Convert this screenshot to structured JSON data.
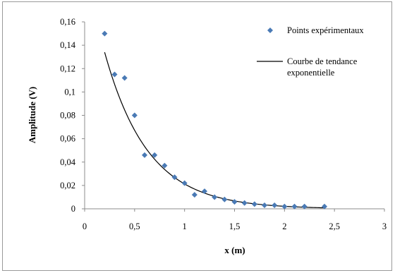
{
  "chart_data": {
    "type": "scatter",
    "xlabel": "x (m)",
    "ylabel": "Amplitude (V)",
    "xlim": [
      0,
      3
    ],
    "ylim": [
      0,
      0.16
    ],
    "x_ticks": [
      "0",
      "0,5",
      "1",
      "1,5",
      "2",
      "2,5",
      "3"
    ],
    "y_ticks": [
      "0",
      "0,02",
      "0,04",
      "0,06",
      "0,08",
      "0,1",
      "0,12",
      "0,14",
      "0,16"
    ],
    "grid": false,
    "legend_position": "top-right",
    "series": [
      {
        "name": "Points expérimentaux",
        "kind": "markers",
        "marker": "diamond",
        "color": "#4a7ab5",
        "points": [
          [
            0.2,
            0.15
          ],
          [
            0.3,
            0.115
          ],
          [
            0.4,
            0.112
          ],
          [
            0.5,
            0.08
          ],
          [
            0.6,
            0.046
          ],
          [
            0.7,
            0.046
          ],
          [
            0.8,
            0.037
          ],
          [
            0.9,
            0.027
          ],
          [
            1.0,
            0.022
          ],
          [
            1.1,
            0.012
          ],
          [
            1.2,
            0.015
          ],
          [
            1.3,
            0.01
          ],
          [
            1.4,
            0.008
          ],
          [
            1.5,
            0.006
          ],
          [
            1.6,
            0.005
          ],
          [
            1.7,
            0.004
          ],
          [
            1.8,
            0.003
          ],
          [
            1.9,
            0.003
          ],
          [
            2.0,
            0.002
          ],
          [
            2.1,
            0.002
          ],
          [
            2.2,
            0.002
          ],
          [
            2.4,
            0.002
          ]
        ]
      },
      {
        "name": "Courbe de tendance exponentielle",
        "legend_lines": [
          "Courbe de tendance",
          "exponentielle"
        ],
        "kind": "line",
        "color": "#000000",
        "trend": {
          "model": "exponential",
          "a": 0.2123,
          "b": -2.3,
          "x_range": [
            0.2,
            2.4
          ]
        }
      }
    ]
  }
}
